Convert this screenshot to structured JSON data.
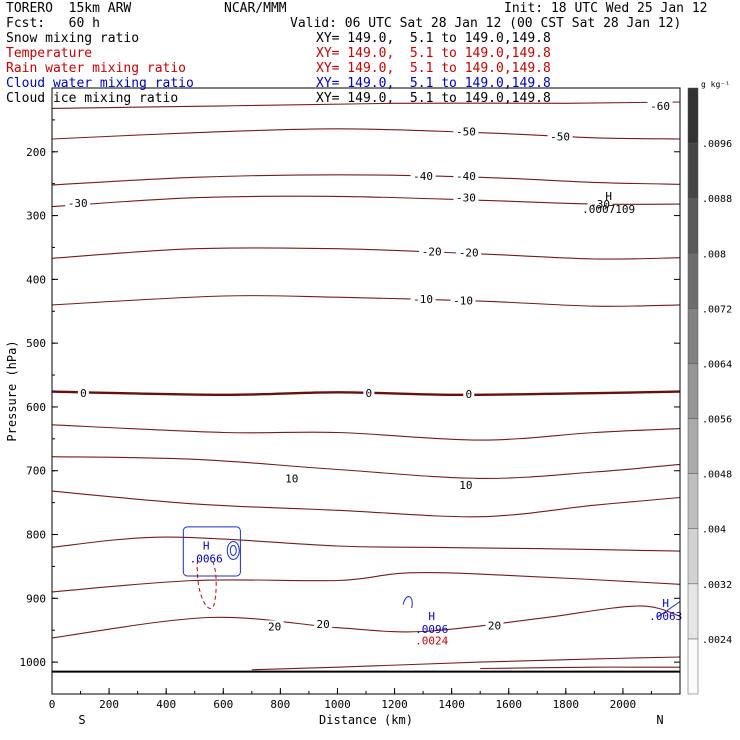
{
  "header": {
    "model": "TORERO  15km ARW",
    "center": "NCAR/MMM",
    "init": "Init: 18 UTC Wed 25 Jan 12",
    "fcst": "Fcst:   60 h",
    "valid": "Valid: 06 UTC Sat 28 Jan 12 (00 CST Sat 28 Jan 12)"
  },
  "fields": [
    {
      "name": "Snow mixing ratio",
      "xy": "XY= 149.0,  5.1 to 149.0,149.8",
      "color": "#000000"
    },
    {
      "name": "Temperature",
      "xy": "XY= 149.0,  5.1 to 149.0,149.8",
      "color": "#cc0000"
    },
    {
      "name": "Rain water mixing ratio",
      "xy": "XY= 149.0,  5.1 to 149.0,149.8",
      "color": "#cc0000"
    },
    {
      "name": "Cloud water mixing ratio",
      "xy": "XY= 149.0,  5.1 to 149.0,149.8",
      "color": "#0000cc"
    },
    {
      "name": "Cloud ice mixing ratio",
      "xy": "XY= 149.0,  5.1 to 149.0,149.8",
      "color": "#000000"
    }
  ],
  "chart_data": {
    "type": "contour",
    "xlabel": "Distance (km)",
    "ylabel": "Pressure (hPa)",
    "xlim": [
      0,
      2200
    ],
    "ylim": [
      1050,
      100
    ],
    "x_ticks": [
      0,
      200,
      400,
      600,
      800,
      1000,
      1200,
      1400,
      1600,
      1800,
      2000
    ],
    "y_ticks": [
      200,
      300,
      400,
      500,
      600,
      700,
      800,
      900,
      1000
    ],
    "x_end_labels": {
      "left": "S",
      "right": "N"
    },
    "surface_pressure": 1015,
    "temperature_contours": [
      {
        "label": "-60",
        "points": [
          [
            0,
            132
          ],
          [
            600,
            128
          ],
          [
            1200,
            124
          ],
          [
            1800,
            124
          ],
          [
            2200,
            122
          ]
        ]
      },
      {
        "label": "-50",
        "points": [
          [
            0,
            180
          ],
          [
            500,
            170
          ],
          [
            1000,
            164
          ],
          [
            1500,
            170
          ],
          [
            1900,
            178
          ],
          [
            2200,
            180
          ]
        ]
      },
      {
        "label": "-40",
        "points": [
          [
            0,
            252
          ],
          [
            500,
            240
          ],
          [
            1000,
            236
          ],
          [
            1500,
            240
          ],
          [
            1900,
            248
          ],
          [
            2200,
            251
          ]
        ]
      },
      {
        "label": "-30",
        "points": [
          [
            0,
            286
          ],
          [
            500,
            272
          ],
          [
            1000,
            270
          ],
          [
            1500,
            276
          ],
          [
            1900,
            282
          ],
          [
            2200,
            282
          ]
        ]
      },
      {
        "label": "-20",
        "points": [
          [
            0,
            367
          ],
          [
            500,
            352
          ],
          [
            1000,
            352
          ],
          [
            1500,
            360
          ],
          [
            1900,
            368
          ],
          [
            2200,
            366
          ]
        ]
      },
      {
        "label": "-10",
        "points": [
          [
            0,
            440
          ],
          [
            600,
            426
          ],
          [
            1000,
            428
          ],
          [
            1500,
            434
          ],
          [
            1900,
            442
          ],
          [
            2200,
            440
          ]
        ]
      },
      {
        "label": "0",
        "points": [
          [
            0,
            576
          ],
          [
            600,
            581
          ],
          [
            1000,
            577
          ],
          [
            1400,
            581
          ],
          [
            1800,
            579
          ],
          [
            2200,
            576
          ]
        ]
      },
      {
        "label": "10",
        "points": [
          [
            0,
            678
          ],
          [
            500,
            682
          ],
          [
            1000,
            698
          ],
          [
            1500,
            712
          ],
          [
            1900,
            702
          ],
          [
            2200,
            690
          ]
        ]
      },
      {
        "label": "20",
        "points": [
          [
            0,
            962
          ],
          [
            550,
            930
          ],
          [
            1000,
            946
          ],
          [
            1300,
            952
          ],
          [
            1700,
            932
          ],
          [
            2050,
            912
          ],
          [
            2200,
            928
          ]
        ]
      }
    ],
    "other_contours": [
      {
        "points": [
          [
            0,
            628
          ],
          [
            600,
            640
          ],
          [
            1000,
            640
          ],
          [
            1500,
            652
          ],
          [
            1900,
            640
          ],
          [
            2200,
            634
          ]
        ]
      },
      {
        "points": [
          [
            0,
            732
          ],
          [
            500,
            752
          ],
          [
            1000,
            762
          ],
          [
            1500,
            772
          ],
          [
            1900,
            754
          ],
          [
            2200,
            742
          ]
        ]
      },
      {
        "points": [
          [
            0,
            820
          ],
          [
            400,
            804
          ],
          [
            1000,
            818
          ],
          [
            1300,
            820
          ],
          [
            1700,
            822
          ],
          [
            2200,
            826
          ]
        ]
      },
      {
        "points": [
          [
            0,
            890
          ],
          [
            500,
            872
          ],
          [
            1000,
            872
          ],
          [
            1250,
            860
          ],
          [
            1600,
            864
          ],
          [
            2200,
            878
          ]
        ]
      },
      {
        "points": [
          [
            700,
            1012
          ],
          [
            1000,
            1008
          ],
          [
            1500,
            1000
          ],
          [
            1900,
            995
          ],
          [
            2200,
            992
          ]
        ]
      },
      {
        "points": [
          [
            1500,
            1010
          ],
          [
            1900,
            1008
          ],
          [
            2200,
            1008
          ]
        ]
      }
    ],
    "temp_labels_inline": [
      {
        "label": "-60",
        "x": 2130,
        "p": 128
      },
      {
        "label": "-50",
        "x": 1450,
        "p": 168
      },
      {
        "label": "-50",
        "x": 1780,
        "p": 176
      },
      {
        "label": "-40",
        "x": 1300,
        "p": 238
      },
      {
        "label": "-40",
        "x": 1450,
        "p": 238
      },
      {
        "label": "-30",
        "x": 90,
        "p": 280
      },
      {
        "label": "-30",
        "x": 1450,
        "p": 272
      },
      {
        "label": "-30",
        "x": 1920,
        "p": 282
      },
      {
        "label": "-20",
        "x": 1330,
        "p": 356
      },
      {
        "label": "-20",
        "x": 1460,
        "p": 358
      },
      {
        "label": "-10",
        "x": 1300,
        "p": 431
      },
      {
        "label": "-10",
        "x": 1440,
        "p": 433
      },
      {
        "label": "0",
        "x": 110,
        "p": 578
      },
      {
        "label": "0",
        "x": 1110,
        "p": 578
      },
      {
        "label": "0",
        "x": 1460,
        "p": 580
      },
      {
        "label": "10",
        "x": 840,
        "p": 712
      },
      {
        "label": "10",
        "x": 1450,
        "p": 722
      },
      {
        "label": "20",
        "x": 780,
        "p": 944
      },
      {
        "label": "20",
        "x": 950,
        "p": 940
      },
      {
        "label": "20",
        "x": 1550,
        "p": 943
      }
    ],
    "maxima": [
      {
        "label": "H",
        "value": ".0007109",
        "x": 1950,
        "p": 282,
        "color": "#000000"
      },
      {
        "label": "H",
        "value": ".0066",
        "x": 540,
        "p": 830,
        "color": "#0000cc"
      },
      {
        "label": "H",
        "value": ".0096",
        "x": 1330,
        "p": 940,
        "color": "#0000cc"
      },
      {
        "label": "",
        "value": ".0024",
        "x": 1330,
        "p": 958,
        "color": "#cc0000"
      },
      {
        "label": "H",
        "value": ".0063",
        "x": 2150,
        "p": 920,
        "color": "#0000cc"
      }
    ],
    "colorbar": {
      "unit": "g kg⁻¹",
      "levels": [
        ".0024",
        ".0032",
        ".004",
        ".0048",
        ".0056",
        ".0064",
        ".0072",
        ".008",
        ".0088",
        ".0096"
      ]
    }
  }
}
